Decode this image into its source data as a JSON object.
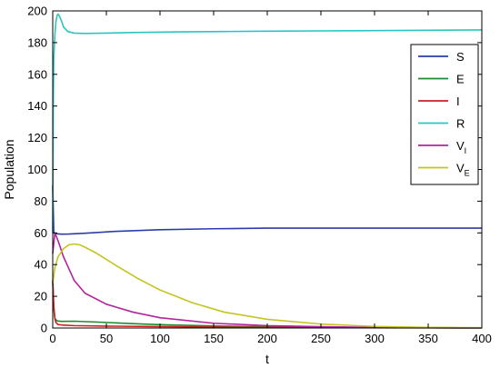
{
  "chart_data": {
    "type": "line",
    "title": "",
    "xlabel": "t",
    "ylabel": "Population",
    "xlim": [
      0,
      400
    ],
    "ylim": [
      0,
      200
    ],
    "xticks": [
      0,
      50,
      100,
      150,
      200,
      250,
      300,
      350,
      400
    ],
    "yticks": [
      0,
      20,
      40,
      60,
      80,
      100,
      120,
      140,
      160,
      180,
      200
    ],
    "grid": false,
    "legend": "top-right",
    "series": [
      {
        "name": "S",
        "label": "S",
        "sub": "",
        "color": "#2b3da8",
        "x": [
          0,
          1,
          2,
          4,
          8,
          15,
          30,
          60,
          100,
          150,
          200,
          250,
          300,
          350,
          400
        ],
        "y": [
          90,
          60,
          59.6,
          59.4,
          59.2,
          59.3,
          59.8,
          61,
          62,
          62.6,
          63,
          63,
          63,
          63,
          63
        ]
      },
      {
        "name": "E",
        "label": "E",
        "sub": "",
        "color": "#1e8a2e",
        "x": [
          0,
          1,
          2,
          4,
          8,
          20,
          40,
          60,
          80,
          100,
          130,
          160,
          200,
          250,
          300,
          350,
          400
        ],
        "y": [
          30,
          12,
          6,
          4.5,
          4.2,
          4.3,
          3.8,
          3.2,
          2.6,
          2.1,
          1.6,
          1.2,
          0.8,
          0.5,
          0.3,
          0.2,
          0.1
        ]
      },
      {
        "name": "I",
        "label": "I",
        "sub": "",
        "color": "#cc2020",
        "x": [
          0,
          1,
          2,
          3,
          5,
          10,
          20,
          50,
          100,
          150,
          200,
          300,
          400
        ],
        "y": [
          30,
          14,
          6,
          3.5,
          2.2,
          1.8,
          1.5,
          1.2,
          0.9,
          0.6,
          0.4,
          0.2,
          0.1
        ]
      },
      {
        "name": "R",
        "label": "R",
        "sub": "",
        "color": "#2bc4c0",
        "x": [
          0,
          0.5,
          1,
          2,
          3,
          4,
          5,
          6,
          8,
          10,
          14,
          20,
          30,
          50,
          80,
          120,
          160,
          200,
          250,
          300,
          350,
          400
        ],
        "y": [
          60,
          140,
          170,
          185,
          193,
          197,
          198,
          197,
          194,
          190,
          187,
          186,
          185.8,
          186,
          186.4,
          186.8,
          187,
          187.2,
          187.4,
          187.6,
          187.8,
          188
        ]
      },
      {
        "name": "V_I",
        "label": "V",
        "sub": "I",
        "color": "#b0249c",
        "x": [
          0,
          2,
          5,
          10,
          20,
          30,
          50,
          75,
          100,
          150,
          200,
          250,
          300,
          350,
          400
        ],
        "y": [
          47,
          60,
          55,
          45,
          30,
          22,
          15,
          10,
          6.5,
          3,
          1.5,
          0.8,
          0.4,
          0.2,
          0.1
        ]
      },
      {
        "name": "V_E",
        "label": "V",
        "sub": "E",
        "color": "#c4c420",
        "x": [
          0,
          2,
          5,
          10,
          15,
          20,
          25,
          30,
          40,
          60,
          80,
          100,
          130,
          160,
          200,
          250,
          300,
          350,
          400
        ],
        "y": [
          28,
          38,
          45,
          50,
          52.5,
          53,
          52.5,
          51,
          47.5,
          39,
          31,
          24,
          16,
          10,
          5.5,
          2.5,
          1,
          0.4,
          0.2
        ]
      }
    ]
  }
}
